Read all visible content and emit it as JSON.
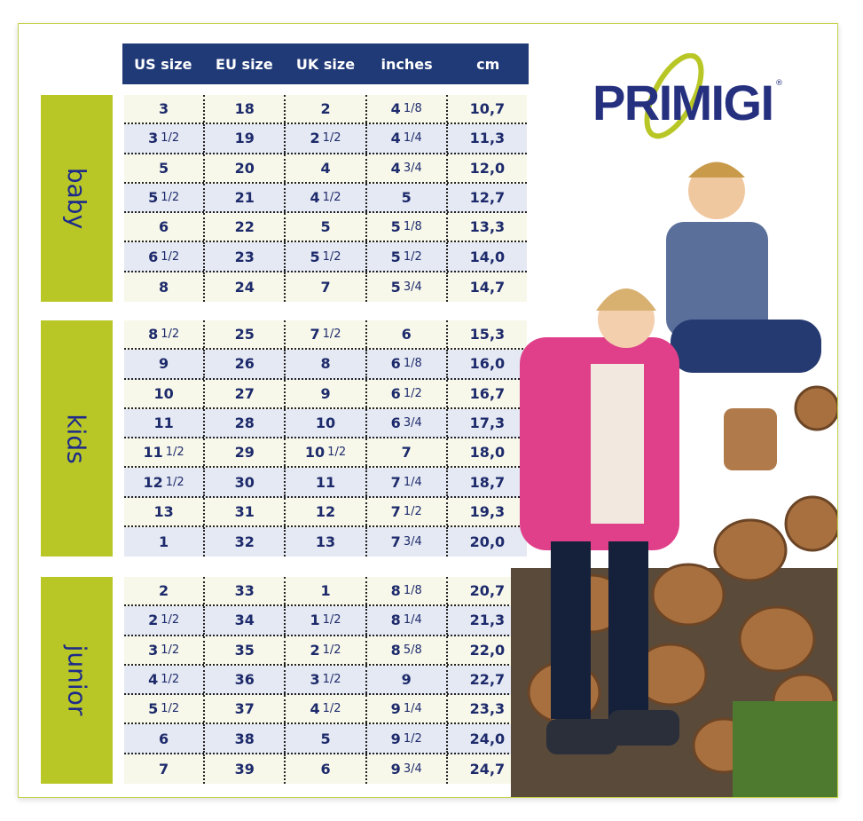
{
  "brand": {
    "logo_text": "PRIMIGI",
    "logo_color": "#25307f",
    "accent": "#b8c726"
  },
  "header": [
    "US size",
    "EU size",
    "UK size",
    "inches",
    "cm"
  ],
  "groups": [
    {
      "label": "baby",
      "rows": [
        [
          "3",
          "18",
          "2",
          "4 1/8",
          "10,7"
        ],
        [
          "3 1/2",
          "19",
          "2 1/2",
          "4 1/4",
          "11,3"
        ],
        [
          "5",
          "20",
          "4",
          "4 3/4",
          "12,0"
        ],
        [
          "5 1/2",
          "21",
          "4 1/2",
          "5",
          "12,7"
        ],
        [
          "6",
          "22",
          "5",
          "5 1/8",
          "13,3"
        ],
        [
          "6 1/2",
          "23",
          "5 1/2",
          "5 1/2",
          "14,0"
        ],
        [
          "8",
          "24",
          "7",
          "5 3/4",
          "14,7"
        ]
      ]
    },
    {
      "label": "kids",
      "rows": [
        [
          "8 1/2",
          "25",
          "7 1/2",
          "6",
          "15,3"
        ],
        [
          "9",
          "26",
          "8",
          "6 1/8",
          "16,0"
        ],
        [
          "10",
          "27",
          "9",
          "6 1/2",
          "16,7"
        ],
        [
          "11",
          "28",
          "10",
          "6 3/4",
          "17,3"
        ],
        [
          "11 1/2",
          "29",
          "10 1/2",
          "7",
          "18,0"
        ],
        [
          "12 1/2",
          "30",
          "11",
          "7 1/4",
          "18,7"
        ],
        [
          "13",
          "31",
          "12",
          "7 1/2",
          "19,3"
        ],
        [
          "1",
          "32",
          "13",
          "7 3/4",
          "20,0"
        ]
      ]
    },
    {
      "label": "junior",
      "rows": [
        [
          "2",
          "33",
          "1",
          "8 1/8",
          "20,7"
        ],
        [
          "2 1/2",
          "34",
          "1 1/2",
          "8 1/4",
          "21,3"
        ],
        [
          "3 1/2",
          "35",
          "2 1/2",
          "8 5/8",
          "22,0"
        ],
        [
          "4 1/2",
          "36",
          "3 1/2",
          "9",
          "22,7"
        ],
        [
          "5 1/2",
          "37",
          "4 1/2",
          "9 1/4",
          "23,3"
        ],
        [
          "6",
          "38",
          "5",
          "9 1/2",
          "24,0"
        ],
        [
          "7",
          "39",
          "6",
          "9 3/4",
          "24,7"
        ]
      ]
    }
  ]
}
